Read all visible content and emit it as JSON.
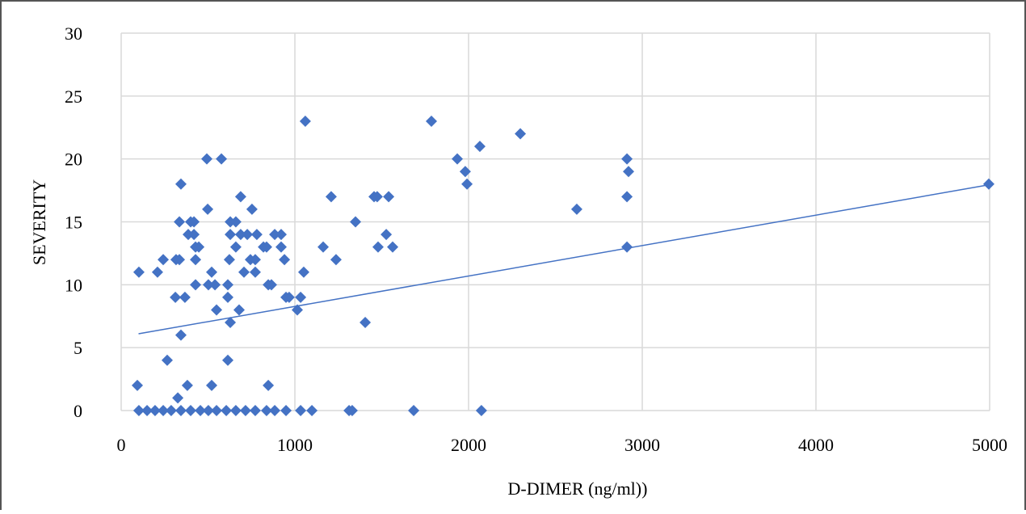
{
  "chart_data": {
    "type": "scatter",
    "x_label": "D-DIMER (ng/ml))",
    "y_label": "SEVERITY",
    "color": "#4472c4",
    "grid": true,
    "xlim": [
      0,
      5000
    ],
    "xticks": [
      0,
      1000,
      2000,
      3000,
      4000,
      5000
    ],
    "ylim": [
      0,
      30
    ],
    "yticks": [
      0,
      5,
      10,
      15,
      20,
      25,
      30
    ],
    "x": [
      102,
      149,
      195,
      242,
      288,
      344,
      400,
      456,
      502,
      549,
      605,
      660,
      716,
      772,
      837,
      884,
      949,
      1033,
      1098,
      1312,
      1330,
      1684,
      2074,
      102,
      93,
      209,
      242,
      316,
      335,
      312,
      367,
      344,
      335,
      344,
      265,
      326,
      381,
      386,
      400,
      419,
      419,
      428,
      447,
      428,
      428,
      493,
      498,
      502,
      521,
      540,
      549,
      521,
      577,
      614,
      614,
      614,
      623,
      628,
      628,
      628,
      660,
      660,
      679,
      688,
      688,
      707,
      726,
      744,
      753,
      772,
      772,
      781,
      819,
      837,
      847,
      847,
      865,
      884,
      921,
      921,
      940,
      949,
      967,
      1014,
      1033,
      1051,
      1060,
      1163,
      1209,
      1237,
      1349,
      1405,
      1456,
      1474,
      1479,
      1526,
      1540,
      1563,
      1786,
      1935,
      1981,
      1991,
      2065,
      2298,
      2623,
      2912,
      2921,
      2912,
      2912,
      4995
    ],
    "values": [
      0,
      0,
      0,
      0,
      0,
      0,
      0,
      0,
      0,
      0,
      0,
      0,
      0,
      0,
      0,
      0,
      0,
      0,
      0,
      0,
      0,
      0,
      0,
      11,
      2,
      11,
      12,
      12,
      12,
      9,
      9,
      18,
      15,
      6,
      4,
      1,
      2,
      14,
      15,
      15,
      14,
      13,
      13,
      12,
      10,
      20,
      16,
      10,
      11,
      10,
      8,
      2,
      20,
      9,
      10,
      4,
      12,
      15,
      14,
      7,
      15,
      13,
      8,
      17,
      14,
      11,
      14,
      12,
      16,
      12,
      11,
      14,
      13,
      13,
      10,
      2,
      10,
      14,
      14,
      13,
      12,
      9,
      9,
      8,
      9,
      11,
      23,
      13,
      17,
      12,
      15,
      7,
      17,
      17,
      13,
      14,
      17,
      13,
      23,
      20,
      19,
      18,
      21,
      22,
      16,
      20,
      19,
      17,
      13,
      18
    ],
    "trendline": {
      "x": [
        100,
        5020
      ],
      "y": [
        6.1,
        18
      ]
    }
  }
}
